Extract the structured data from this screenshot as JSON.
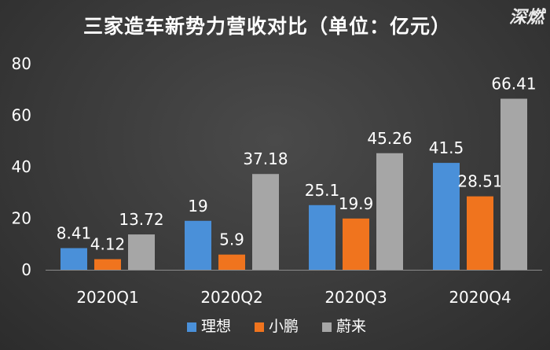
{
  "watermark": "深燃",
  "chart_data": {
    "type": "bar",
    "title": "三家造车新势力营收对比（单位：亿元）",
    "categories": [
      "2020Q1",
      "2020Q2",
      "2020Q3",
      "2020Q4"
    ],
    "series": [
      {
        "name": "理想",
        "color": "#4a90d9",
        "values": [
          8.41,
          19,
          25.1,
          41.5
        ]
      },
      {
        "name": "小鹏",
        "color": "#f0741e",
        "values": [
          4.12,
          5.9,
          19.9,
          28.51
        ]
      },
      {
        "name": "蔚来",
        "color": "#a6a6a6",
        "values": [
          13.72,
          37.18,
          45.26,
          66.41
        ]
      }
    ],
    "value_labels": [
      [
        "8.41",
        "19",
        "25.1",
        "41.5"
      ],
      [
        "4.12",
        "5.9",
        "19.9",
        "28.51"
      ],
      [
        "13.72",
        "37.18",
        "45.26",
        "66.41"
      ]
    ],
    "yticks": [
      0,
      20,
      40,
      60,
      80
    ],
    "ytick_labels": [
      "0",
      "20",
      "40",
      "60",
      "80"
    ],
    "ylim": [
      0,
      80
    ],
    "grid": false,
    "legend_position": "bottom"
  }
}
